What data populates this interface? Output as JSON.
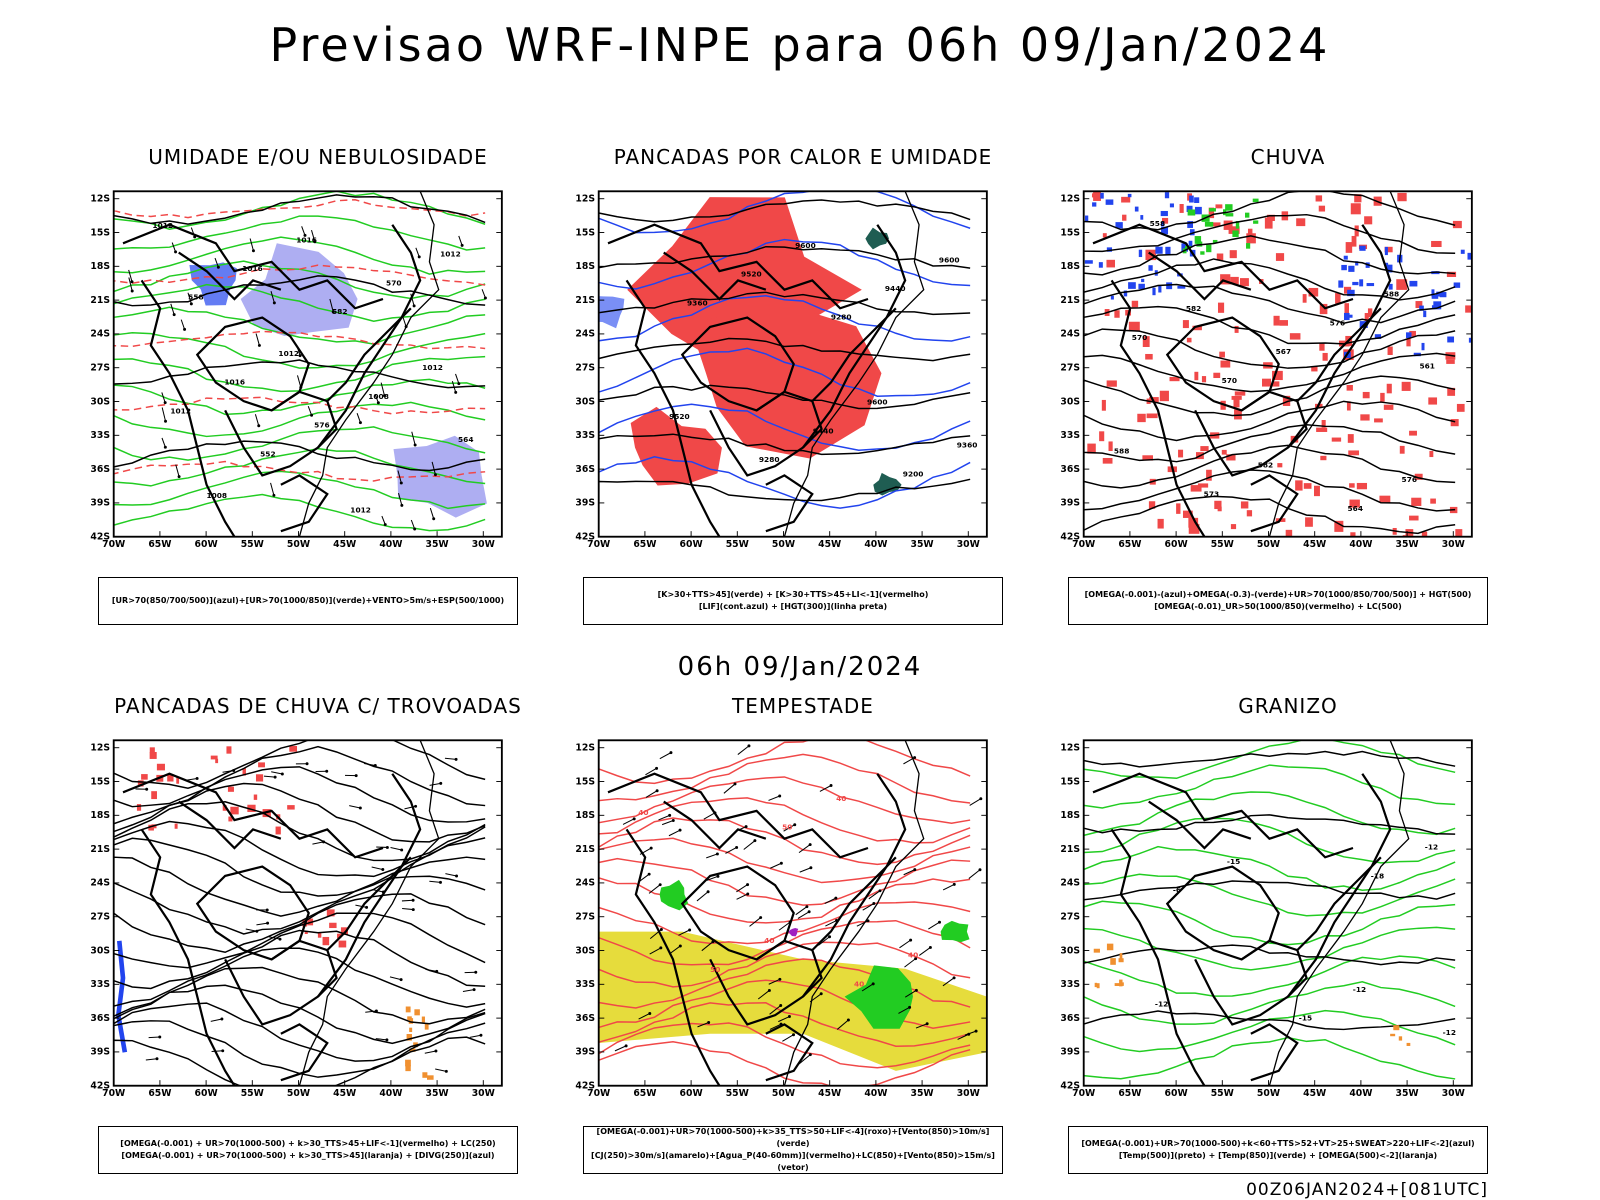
{
  "header": {
    "title": "Previsao WRF-INPE  para 06h 09/Jan/2024"
  },
  "mid_title": "06h 09/Jan/2024",
  "footer": "00Z06JAN2024+[081UTC]",
  "axes": {
    "lat": [
      "12S",
      "15S",
      "18S",
      "21S",
      "24S",
      "27S",
      "30S",
      "33S",
      "36S",
      "39S",
      "42S"
    ],
    "lon": [
      "70W",
      "65W",
      "60W",
      "55W",
      "50W",
      "45W",
      "40W",
      "35W",
      "30W"
    ]
  },
  "colors": {
    "red": "#f04848",
    "green": "#22cc22",
    "blue": "#2244ee",
    "lavender": "#a0a0f0",
    "yellow": "#e6dc3c",
    "orange": "#f09030",
    "darkteal": "#1f5d52",
    "purple": "#a020c0"
  },
  "panels": [
    {
      "id": "umidade",
      "title": "UMIDADE E/OU NEBULOSIDADE",
      "legend": [
        "[UR>70(850/700/500)](azul)+[UR>70(1000/850)](verde)+VENTO>5m/s+ESP(500/1000)"
      ],
      "labels": [
        "1008",
        "1012",
        "1012",
        "1012",
        "1012",
        "1016",
        "1016",
        "1008",
        "1012",
        "1012",
        "1016",
        "576",
        "570",
        "564",
        "558",
        "552",
        "582"
      ]
    },
    {
      "id": "pancadas-calor",
      "title": "PANCADAS POR CALOR E UMIDADE",
      "legend": [
        "[K>30+TTS>45](verde) + [K>30+TTS>45+LI<-1](vermelho)",
        "[LIF](cont.azul) + [HGT(300)](linha preta)"
      ],
      "labels": [
        "9600",
        "9600",
        "9600",
        "9520",
        "9520",
        "9440",
        "9440",
        "9360",
        "9360",
        "9280",
        "9280",
        "9200"
      ]
    },
    {
      "id": "chuva",
      "title": "CHUVA",
      "legend": [
        "[OMEGA(-0.001)-(azul)+OMEGA(-0.3)-(verde)+UR>70(1000/850/700/500)] + HGT(500)",
        "[OMEGA(-0.01)_UR>50(1000/850)(vermelho) + LC(500)"
      ],
      "labels": [
        "588",
        "588",
        "582",
        "582",
        "576",
        "576",
        "570",
        "573",
        "567",
        "564",
        "561",
        "558",
        "570"
      ]
    },
    {
      "id": "trovoadas",
      "title": "PANCADAS DE CHUVA C/ TROVOADAS",
      "legend": [
        "[OMEGA(-0.001) + UR>70(1000-500) + k>30_TTS>45+LIF<-1](vermelho) + LC(250)",
        "[OMEGA(-0.001) + UR>70(1000-500) + k>30_TTS>45](laranja) + [DIVG(250)](azul)"
      ],
      "labels": []
    },
    {
      "id": "tempestade",
      "title": "TEMPESTADE",
      "legend": [
        "[OMEGA(-0.001)+UR>70(1000-500)+k>35_TTS>50+LIF<-4](roxo)+[Vento(850)>10m/s](verde)",
        "[CJ(250)>30m/s](amarelo)+[Agua_P(40-60mm)](vermelho)+LC(850)+[Vento(850)>15m/s](vetor)"
      ],
      "labels": [
        "40",
        "40",
        "40",
        "40",
        "50",
        "50",
        "40"
      ]
    },
    {
      "id": "granizo",
      "title": "GRANIZO",
      "legend": [
        "[OMEGA(-0.001)+UR>70(1000-500)+k<60+TTS>52+VT>25+SWEAT>220+LIF<-2](azul)",
        "[Temp(500)](preto) + [Temp(850)](verde) + [OMEGA(500)<-2](laranja)"
      ],
      "labels": [
        "-12",
        "-12",
        "-12",
        "-15",
        "-15",
        "-18",
        "-12",
        "-6"
      ]
    }
  ]
}
